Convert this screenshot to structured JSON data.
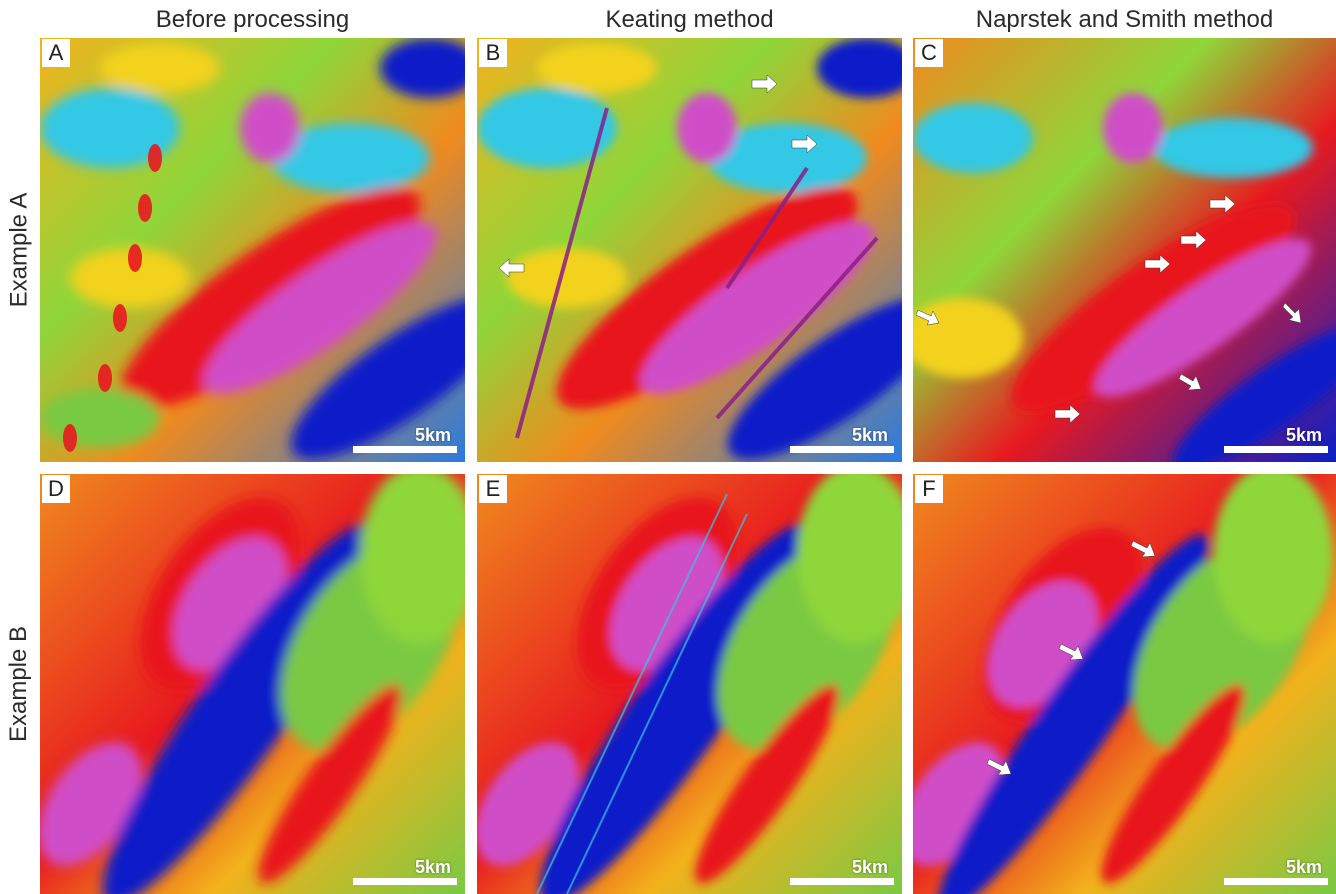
{
  "columns": [
    {
      "title": "Before processing"
    },
    {
      "title": "Keating method"
    },
    {
      "title": "Naprstek and Smith method"
    }
  ],
  "rows": [
    {
      "title": "Example A"
    },
    {
      "title": "Example B"
    }
  ],
  "panels": [
    {
      "letter": "A",
      "scale": "5km"
    },
    {
      "letter": "B",
      "scale": "5km"
    },
    {
      "letter": "C",
      "scale": "5km"
    },
    {
      "letter": "D",
      "scale": "5km"
    },
    {
      "letter": "E",
      "scale": "5km"
    },
    {
      "letter": "F",
      "scale": "5km"
    }
  ],
  "colors": {
    "background": "#7ac943",
    "low": "#0a1fc8",
    "cyan": "#33c8e6",
    "green": "#7ac943",
    "yellow": "#f2d21c",
    "orange": "#f08a1e",
    "red": "#e8191f",
    "magenta": "#d04ec8",
    "highlight": "#ffffff"
  }
}
